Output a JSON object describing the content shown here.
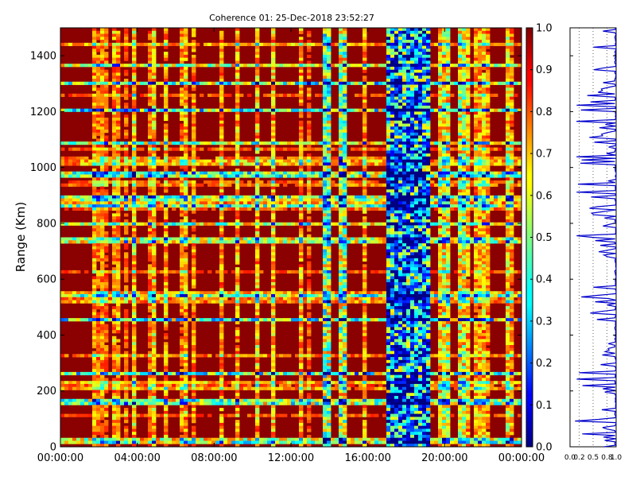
{
  "chart_data": {
    "type": "heatmap",
    "title": "Coherence 01: 25-Dec-2018 23:52:27",
    "xlabel": "",
    "ylabel": "Range (Km)",
    "x_ticks": [
      "00:00:00",
      "04:00:00",
      "08:00:00",
      "12:00:00",
      "16:00:00",
      "20:00:00",
      "00:00:00"
    ],
    "y_ticks": [
      "0",
      "200",
      "400",
      "600",
      "800",
      "1000",
      "1200",
      "1400"
    ],
    "ylim": [
      0,
      1500
    ],
    "xlim_hours": [
      0,
      24
    ],
    "colorbar": {
      "ticks": [
        "0.0",
        "0.1",
        "0.2",
        "0.3",
        "0.4",
        "0.5",
        "0.6",
        "0.7",
        "0.8",
        "0.9",
        "1.0"
      ],
      "range": [
        0,
        1
      ],
      "colormap": "jet"
    },
    "profile_panel": {
      "x_ticks": [
        "0.0",
        "0.2",
        "0.5",
        "0.8",
        "1.0"
      ],
      "line_color": "#0000cc",
      "gridlines": "dotted"
    },
    "grid": false
  }
}
